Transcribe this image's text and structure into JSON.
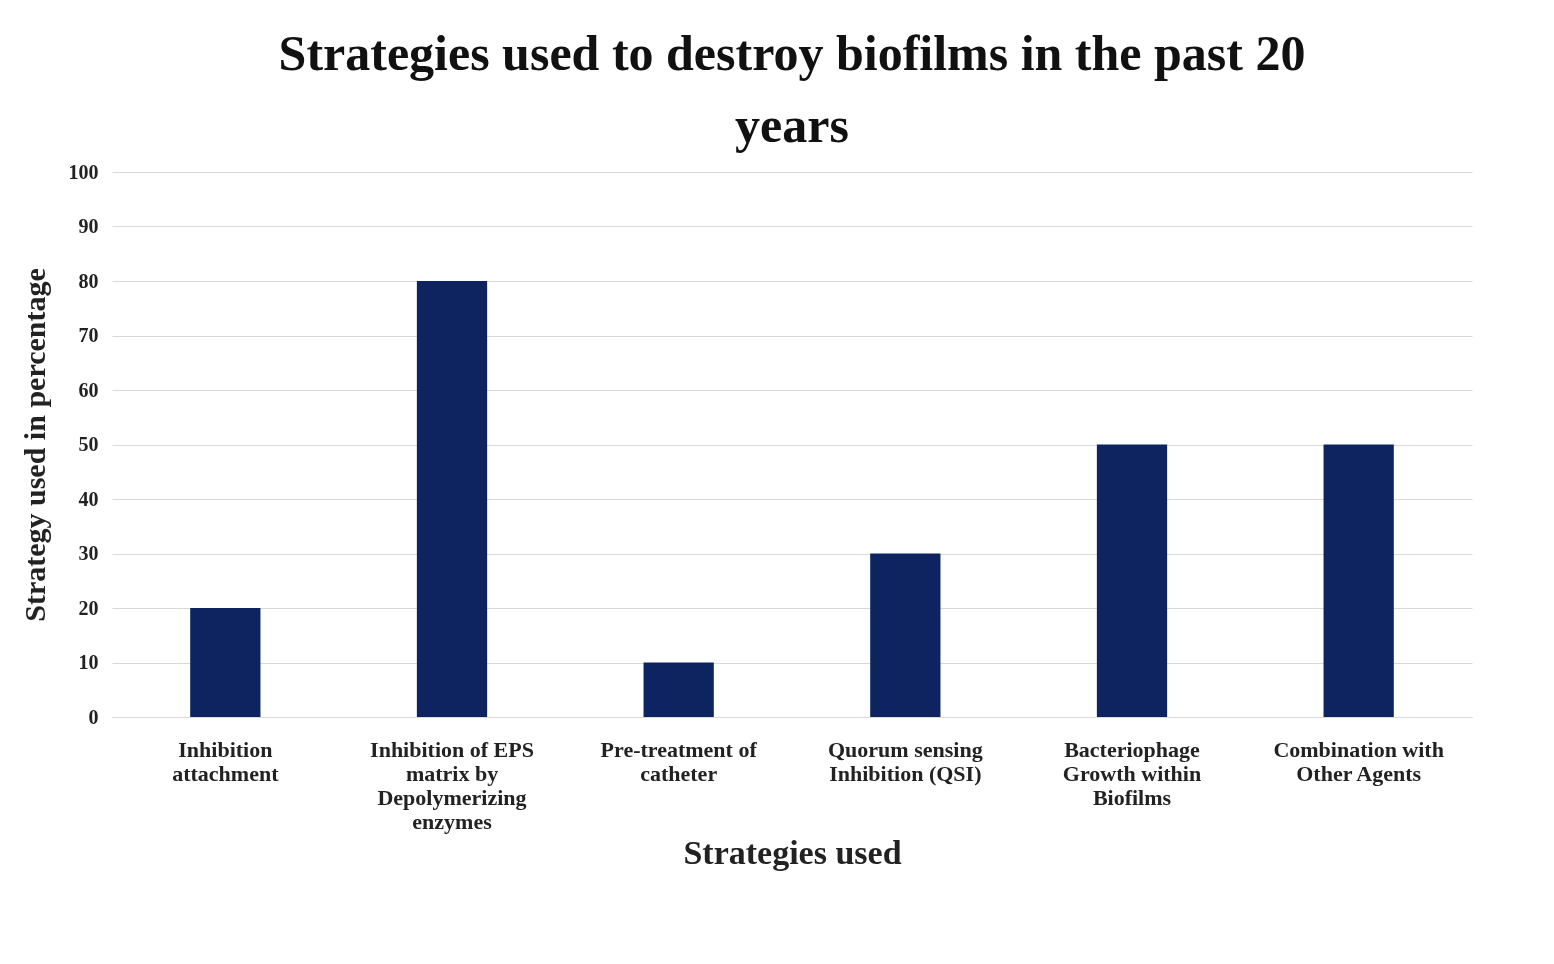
{
  "chart_data": {
    "type": "bar",
    "title": "Strategies used to destroy biofilms in the past 20 years",
    "xlabel": "Strategies used",
    "ylabel": "Strategy used in percentage",
    "categories": [
      "Inhibition attachment",
      "Inhibition of EPS matrix by Depolymerizing enzymes",
      "Pre-treatment of catheter",
      "Quorum sensing Inhibition (QSI)",
      "Bacteriophage Growth within Biofilms",
      "Combination with Other Agents"
    ],
    "values": [
      20,
      80,
      10,
      30,
      50,
      50
    ],
    "color": "#0d2460",
    "ylim": [
      0,
      100
    ],
    "yticks": [
      0,
      10,
      20,
      30,
      40,
      50,
      60,
      70,
      80,
      90,
      100
    ],
    "grid": "y"
  }
}
